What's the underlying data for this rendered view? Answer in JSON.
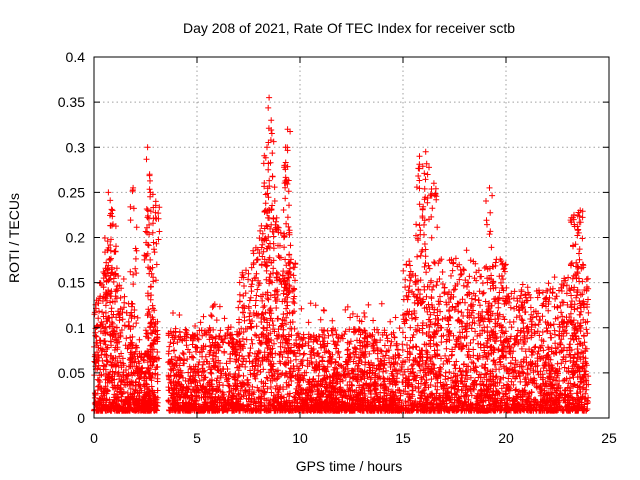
{
  "chart_data": {
    "type": "scatter",
    "title": "Day 208 of 2021, Rate Of TEC Index for receiver sctb",
    "xlabel": "GPS time / hours",
    "ylabel": "ROTI / TECUs",
    "xlim": [
      0,
      25
    ],
    "ylim": [
      0,
      0.4
    ],
    "xticks": [
      0,
      5,
      10,
      15,
      20,
      25
    ],
    "yticks": [
      0,
      0.05,
      0.1,
      0.15,
      0.2,
      0.25,
      0.3,
      0.35,
      0.4
    ],
    "xtick_labels": [
      "0",
      "5",
      "10",
      "15",
      "20",
      "25"
    ],
    "ytick_labels": [
      "0",
      "0.05",
      "0.1",
      "0.15",
      "0.2",
      "0.25",
      "0.3",
      "0.35",
      "0.4"
    ],
    "grid": true,
    "legend": "none",
    "marker": "+",
    "color": "#ff0000",
    "series": [
      {
        "description_of_density": "dense band of points 0.01-0.10 across 0-3h, 3.5-24h; gap around 3.0-3.5h",
        "peaks": [
          {
            "x": 0.7,
            "y": 0.25
          },
          {
            "x": 0.9,
            "y": 0.23
          },
          {
            "x": 1.9,
            "y": 0.255
          },
          {
            "x": 2.6,
            "y": 0.3
          },
          {
            "x": 2.7,
            "y": 0.27
          },
          {
            "x": 3.0,
            "y": 0.24
          },
          {
            "x": 8.5,
            "y": 0.355
          },
          {
            "x": 8.6,
            "y": 0.33
          },
          {
            "x": 8.4,
            "y": 0.3
          },
          {
            "x": 9.4,
            "y": 0.32
          },
          {
            "x": 9.3,
            "y": 0.3
          },
          {
            "x": 15.8,
            "y": 0.29
          },
          {
            "x": 16.1,
            "y": 0.295
          },
          {
            "x": 16.5,
            "y": 0.26
          },
          {
            "x": 19.2,
            "y": 0.255
          },
          {
            "x": 23.6,
            "y": 0.23
          },
          {
            "x": 23.3,
            "y": 0.225
          }
        ]
      }
    ]
  }
}
